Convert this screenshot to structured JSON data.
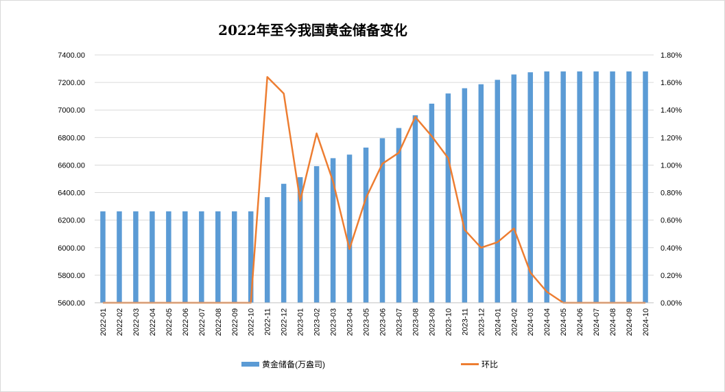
{
  "chart_data": {
    "type": "bar",
    "title": "2022年至今我国黄金储备变化",
    "categories": [
      "2022-01",
      "2022-02",
      "2022-03",
      "2022-04",
      "2022-05",
      "2022-06",
      "2022-07",
      "2022-08",
      "2022-09",
      "2022-10",
      "2022-11",
      "2022-12",
      "2023-01",
      "2023-02",
      "2023-03",
      "2023-04",
      "2023-05",
      "2023-06",
      "2023-07",
      "2023-08",
      "2023-09",
      "2023-10",
      "2023-11",
      "2023-12",
      "2024-01",
      "2024-02",
      "2024-03",
      "2024-04",
      "2024-05",
      "2024-06",
      "2024-07",
      "2024-08",
      "2024-09",
      "2024-10"
    ],
    "series": [
      {
        "name": "黄金储备(万盎司)",
        "type": "bar",
        "axis": "left",
        "color": "#5b9bd5",
        "values": [
          6264,
          6264,
          6264,
          6264,
          6264,
          6264,
          6264,
          6264,
          6264,
          6264,
          6367,
          6464,
          6512,
          6592,
          6650,
          6676,
          6727,
          6795,
          6869,
          6962,
          7046,
          7120,
          7158,
          7187,
          7219,
          7258,
          7274,
          7280,
          7280,
          7280,
          7280,
          7280,
          7280,
          7280
        ]
      },
      {
        "name": "环比",
        "type": "line",
        "axis": "right",
        "color": "#ed7d31",
        "values": [
          0,
          0,
          0,
          0,
          0,
          0,
          0,
          0,
          0,
          0,
          1.64,
          1.52,
          0.74,
          1.23,
          0.88,
          0.39,
          0.76,
          1.01,
          1.09,
          1.35,
          1.21,
          1.05,
          0.53,
          0.4,
          0.44,
          0.54,
          0.22,
          0.08,
          0,
          0,
          0,
          0,
          0,
          0
        ]
      }
    ],
    "y_left": {
      "min": 5600,
      "max": 7400,
      "step": 200,
      "ticks": [
        "5600.00",
        "5800.00",
        "6000.00",
        "6200.00",
        "6400.00",
        "6600.00",
        "6800.00",
        "7000.00",
        "7200.00",
        "7400.00"
      ]
    },
    "y_right": {
      "min": 0,
      "max": 1.8,
      "step": 0.2,
      "ticks": [
        "0.00%",
        "0.20%",
        "0.40%",
        "0.60%",
        "0.80%",
        "1.00%",
        "1.20%",
        "1.40%",
        "1.60%",
        "1.80%"
      ]
    },
    "grid": true,
    "legend_position": "bottom"
  }
}
